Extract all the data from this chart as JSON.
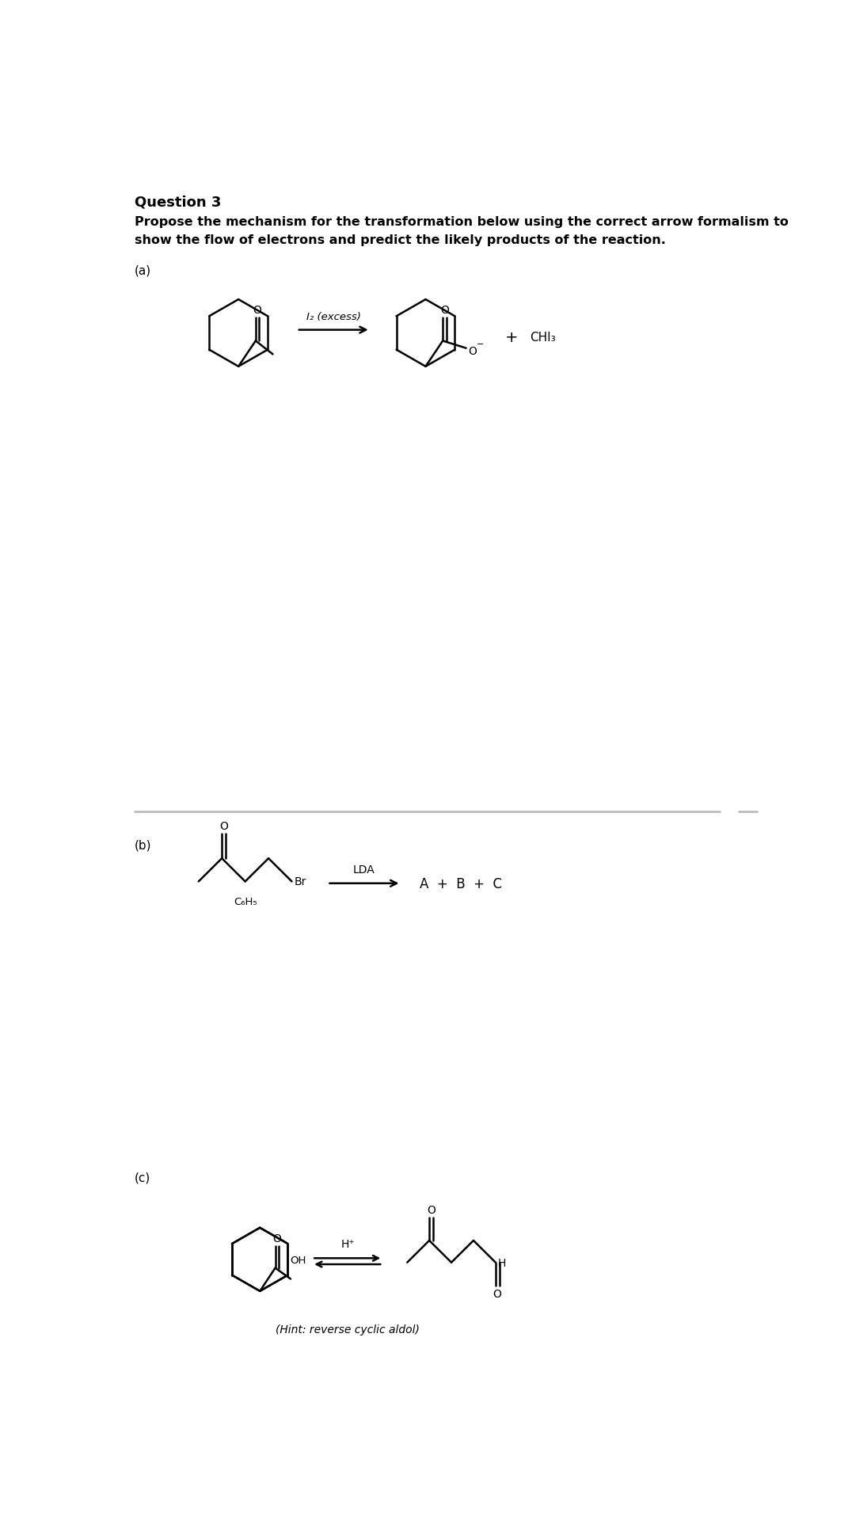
{
  "title": "Question 3",
  "subtitle_line1": "Propose the mechanism for the transformation below using the correct arrow formalism to",
  "subtitle_line2": "show the flow of electrons and predict the likely products of the reaction.",
  "section_a": "(a)",
  "section_b": "(b)",
  "section_c": "(c)",
  "reagent_a": "I₂ (excess)",
  "reagent_b": "LDA",
  "reagent_c": "H⁺",
  "product_b": "A  +  B  +  C",
  "hint_c": "(Hint: reverse cyclic aldol)",
  "chi3": "CHI₃",
  "bg_color": "#ffffff",
  "text_color": "#000000",
  "divider_color": "#bbbbbb"
}
